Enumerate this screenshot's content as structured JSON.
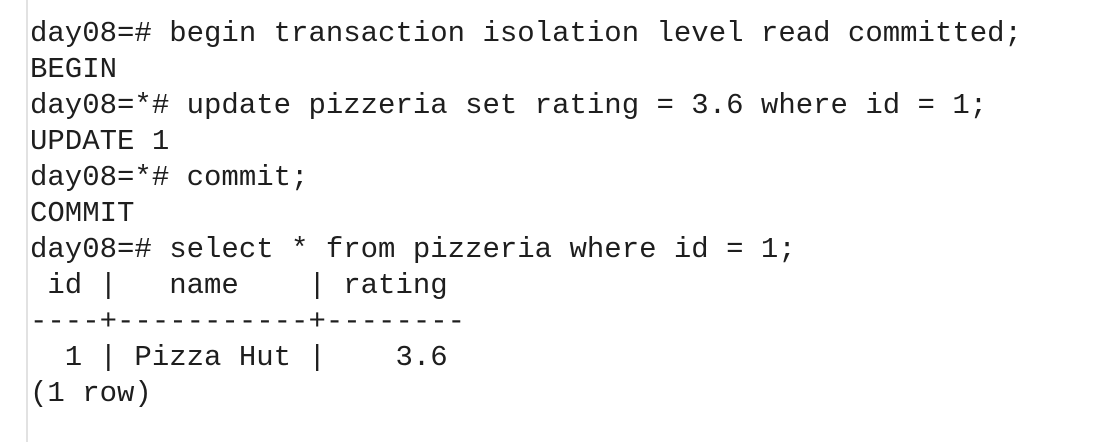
{
  "terminal": {
    "lines": [
      "day08=# begin transaction isolation level read committed;",
      "BEGIN",
      "day08=*# update pizzeria set rating = 3.6 where id = 1;",
      "UPDATE 1",
      "day08=*# commit;",
      "COMMIT",
      "day08=# select * from pizzeria where id = 1;",
      " id |   name    | rating",
      "----+-----------+--------",
      "  1 | Pizza Hut |    3.6",
      "(1 row)"
    ]
  }
}
